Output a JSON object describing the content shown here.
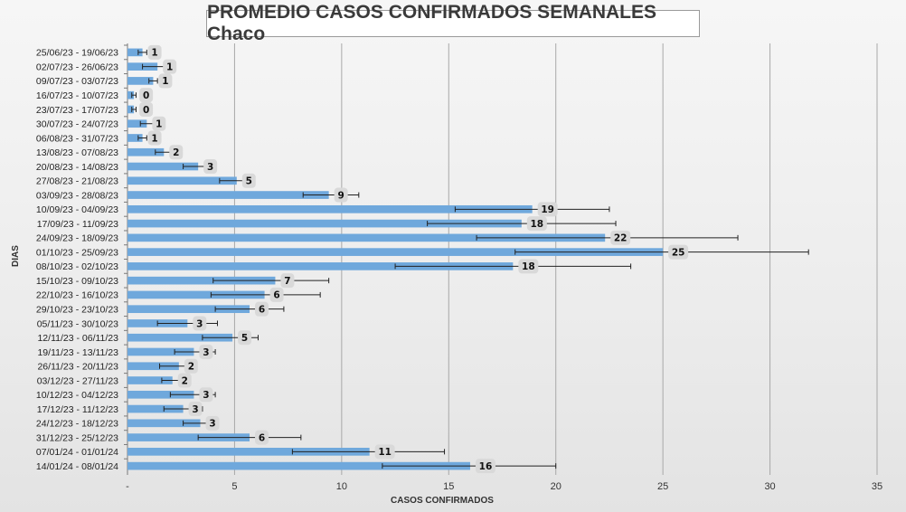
{
  "chart_data": {
    "type": "bar",
    "orientation": "horizontal",
    "title": "PROMEDIO CASOS CONFIRMADOS SEMANALES Chaco",
    "xlabel": "CASOS CONFIRMADOS",
    "ylabel": "DIAS",
    "xlim": [
      0,
      35
    ],
    "x_ticks": [
      "-",
      "5",
      "10",
      "15",
      "20",
      "25",
      "30",
      "35"
    ],
    "grid": "vertical",
    "bar_color": "#6fa8dc",
    "categories": [
      "25/06/23 - 19/06/23",
      "02/07/23 - 26/06/23",
      "09/07/23 - 03/07/23",
      "16/07/23 - 10/07/23",
      "23/07/23 - 17/07/23",
      "30/07/23 - 24/07/23",
      "06/08/23 - 31/07/23",
      "13/08/23 - 07/08/23",
      "20/08/23 - 14/08/23",
      "27/08/23 - 21/08/23",
      "03/09/23 - 28/08/23",
      "10/09/23 - 04/09/23",
      "17/09/23 - 11/09/23",
      "24/09/23 - 18/09/23",
      "01/10/23 - 25/09/23",
      "08/10/23 - 02/10/23",
      "15/10/23 - 09/10/23",
      "22/10/23 - 16/10/23",
      "29/10/23 - 23/10/23",
      "05/11/23 - 30/10/23",
      "12/11/23 - 06/11/23",
      "19/11/23 - 13/11/23",
      "26/11/23 - 20/11/23",
      "03/12/23 - 27/11/23",
      "10/12/23 - 04/12/23",
      "17/12/23 - 11/12/23",
      "24/12/23 - 18/12/23",
      "31/12/23 - 25/12/23",
      "07/01/24 - 01/01/24",
      "14/01/24 - 08/01/24"
    ],
    "values": [
      0.7,
      1.4,
      1.2,
      0.3,
      0.3,
      0.9,
      0.7,
      1.7,
      3.3,
      5.1,
      9.4,
      18.9,
      18.4,
      22.3,
      25.0,
      18.0,
      6.9,
      6.4,
      5.7,
      2.8,
      4.9,
      3.1,
      2.4,
      2.1,
      3.1,
      2.6,
      3.4,
      5.7,
      11.3,
      16.0
    ],
    "labels": [
      "1",
      "1",
      "1",
      "0",
      "0",
      "1",
      "1",
      "2",
      "3",
      "5",
      "9",
      "19",
      "18",
      "22",
      "25",
      "18",
      "7",
      "6",
      "6",
      "3",
      "5",
      "3",
      "2",
      "2",
      "3",
      "3",
      "3",
      "6",
      "11",
      "16"
    ],
    "error_low": [
      0.5,
      0.7,
      1.0,
      0.2,
      0.2,
      0.6,
      0.5,
      1.3,
      2.6,
      4.3,
      8.2,
      15.3,
      14.0,
      16.3,
      18.1,
      12.5,
      4.0,
      3.9,
      4.1,
      1.4,
      3.5,
      2.2,
      1.5,
      1.6,
      2.0,
      1.7,
      2.6,
      3.3,
      7.7,
      11.9
    ],
    "error_high": [
      0.9,
      2.0,
      1.4,
      0.4,
      0.4,
      1.2,
      0.9,
      2.1,
      3.7,
      5.9,
      10.8,
      22.5,
      22.8,
      28.5,
      31.8,
      23.5,
      9.4,
      9.0,
      7.3,
      4.2,
      6.1,
      4.1,
      3.2,
      2.6,
      4.1,
      3.5,
      4.2,
      8.1,
      14.8,
      20.0
    ]
  }
}
